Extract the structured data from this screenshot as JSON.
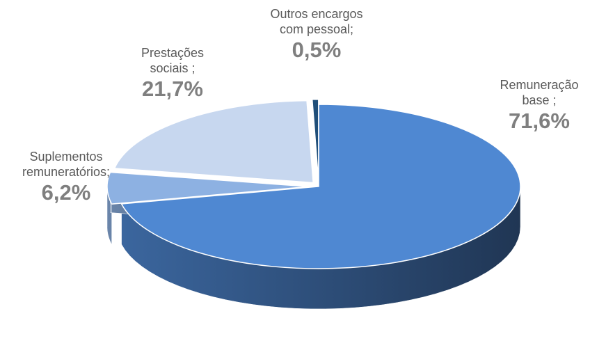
{
  "chart_data": {
    "type": "pie3d",
    "categories": [
      "Remuneração base ;",
      "Suplementos remuneratórios;",
      "Prestações sociais ;",
      "Outros encargos com pessoal;"
    ],
    "values": [
      71.6,
      6.2,
      21.7,
      0.5
    ],
    "value_labels": [
      "71,6%",
      "6,2%",
      "21,7%",
      "0,5%"
    ],
    "colors": [
      "#4f88d2",
      "#8db1e2",
      "#c7d7ef",
      "#1f4e79"
    ]
  }
}
